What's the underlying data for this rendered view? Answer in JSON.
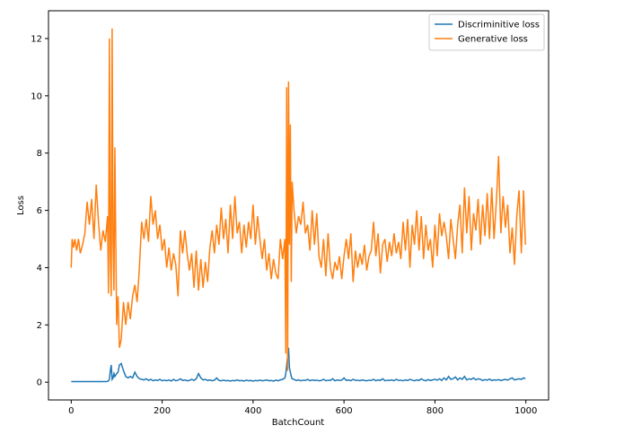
{
  "chart_data": {
    "type": "line",
    "x_label": "BatchCount",
    "y_label": "Loss",
    "xlim": [
      -50,
      1050
    ],
    "ylim": [
      -0.62,
      12.97
    ],
    "xticks": [
      0,
      200,
      400,
      600,
      800,
      1000
    ],
    "yticks": [
      0,
      2,
      4,
      6,
      8,
      10,
      12
    ],
    "legend": "upper right",
    "grid": false,
    "x": [
      0,
      2,
      5,
      8,
      12,
      16,
      20,
      25,
      30,
      35,
      40,
      45,
      50,
      55,
      60,
      65,
      70,
      75,
      80,
      82,
      84,
      86,
      88,
      90,
      92,
      94,
      96,
      98,
      100,
      103,
      106,
      110,
      115,
      120,
      125,
      130,
      135,
      140,
      145,
      150,
      155,
      160,
      165,
      170,
      175,
      180,
      185,
      190,
      195,
      200,
      205,
      210,
      215,
      220,
      225,
      230,
      235,
      240,
      245,
      250,
      255,
      260,
      265,
      270,
      275,
      280,
      285,
      290,
      295,
      300,
      305,
      310,
      315,
      320,
      325,
      330,
      335,
      340,
      345,
      350,
      355,
      360,
      365,
      370,
      375,
      380,
      385,
      390,
      395,
      400,
      405,
      410,
      415,
      420,
      425,
      430,
      435,
      440,
      445,
      450,
      455,
      460,
      465,
      470,
      472,
      474,
      476,
      478,
      480,
      482,
      484,
      486,
      490,
      495,
      500,
      505,
      510,
      515,
      520,
      525,
      530,
      535,
      540,
      545,
      550,
      555,
      560,
      565,
      570,
      575,
      580,
      585,
      590,
      595,
      600,
      605,
      610,
      615,
      620,
      625,
      630,
      635,
      640,
      645,
      650,
      655,
      660,
      665,
      670,
      675,
      680,
      685,
      690,
      695,
      700,
      705,
      710,
      715,
      720,
      725,
      730,
      735,
      740,
      745,
      750,
      755,
      760,
      765,
      770,
      775,
      780,
      785,
      790,
      795,
      800,
      805,
      810,
      815,
      820,
      825,
      830,
      835,
      840,
      845,
      850,
      855,
      860,
      865,
      870,
      875,
      880,
      885,
      890,
      895,
      900,
      905,
      910,
      915,
      920,
      925,
      930,
      935,
      940,
      945,
      950,
      955,
      960,
      965,
      970,
      975,
      980,
      985,
      990,
      995,
      999
    ],
    "series": [
      {
        "name": "Discriminitive loss",
        "color": "#1f77b4",
        "values": [
          0.02,
          0.02,
          0.02,
          0.02,
          0.02,
          0.02,
          0.02,
          0.02,
          0.02,
          0.02,
          0.02,
          0.02,
          0.02,
          0.02,
          0.02,
          0.02,
          0.02,
          0.02,
          0.03,
          0.05,
          0.1,
          0.4,
          0.6,
          0.1,
          0.15,
          0.3,
          0.2,
          0.25,
          0.3,
          0.35,
          0.6,
          0.65,
          0.4,
          0.2,
          0.15,
          0.2,
          0.15,
          0.35,
          0.2,
          0.12,
          0.1,
          0.08,
          0.12,
          0.06,
          0.1,
          0.05,
          0.08,
          0.06,
          0.1,
          0.05,
          0.07,
          0.05,
          0.08,
          0.04,
          0.1,
          0.05,
          0.07,
          0.12,
          0.06,
          0.08,
          0.05,
          0.06,
          0.1,
          0.06,
          0.12,
          0.3,
          0.15,
          0.08,
          0.1,
          0.06,
          0.08,
          0.05,
          0.07,
          0.15,
          0.06,
          0.05,
          0.07,
          0.05,
          0.06,
          0.04,
          0.06,
          0.05,
          0.08,
          0.05,
          0.06,
          0.04,
          0.07,
          0.05,
          0.06,
          0.04,
          0.06,
          0.05,
          0.07,
          0.05,
          0.06,
          0.08,
          0.05,
          0.06,
          0.04,
          0.07,
          0.05,
          0.08,
          0.1,
          0.15,
          0.3,
          0.6,
          0.9,
          1.2,
          0.5,
          0.35,
          0.2,
          0.12,
          0.1,
          0.06,
          0.08,
          0.05,
          0.07,
          0.06,
          0.1,
          0.05,
          0.08,
          0.06,
          0.07,
          0.05,
          0.06,
          0.1,
          0.05,
          0.07,
          0.06,
          0.12,
          0.05,
          0.08,
          0.06,
          0.07,
          0.15,
          0.06,
          0.08,
          0.05,
          0.1,
          0.06,
          0.07,
          0.05,
          0.08,
          0.06,
          0.05,
          0.07,
          0.06,
          0.1,
          0.05,
          0.08,
          0.06,
          0.12,
          0.05,
          0.07,
          0.06,
          0.08,
          0.05,
          0.1,
          0.06,
          0.07,
          0.05,
          0.08,
          0.06,
          0.1,
          0.07,
          0.05,
          0.08,
          0.06,
          0.12,
          0.07,
          0.05,
          0.09,
          0.06,
          0.08,
          0.1,
          0.07,
          0.12,
          0.06,
          0.15,
          0.08,
          0.2,
          0.1,
          0.12,
          0.18,
          0.08,
          0.15,
          0.1,
          0.2,
          0.08,
          0.12,
          0.1,
          0.15,
          0.08,
          0.12,
          0.1,
          0.06,
          0.09,
          0.07,
          0.11,
          0.06,
          0.08,
          0.07,
          0.09,
          0.06,
          0.08,
          0.1,
          0.07,
          0.12,
          0.15,
          0.08,
          0.1,
          0.12,
          0.1,
          0.15,
          0.12
        ]
      },
      {
        "name": "Generative loss",
        "color": "#ff7f0e",
        "values": [
          4.0,
          5.0,
          4.7,
          5.0,
          4.6,
          5.0,
          4.5,
          4.8,
          5.2,
          6.3,
          5.5,
          6.4,
          5.0,
          6.9,
          5.6,
          4.6,
          5.3,
          4.9,
          5.8,
          3.1,
          12.0,
          4.5,
          3.0,
          12.35,
          5.0,
          3.2,
          8.2,
          5.0,
          2.0,
          3.0,
          1.2,
          1.5,
          2.8,
          2.0,
          2.8,
          2.2,
          3.0,
          3.4,
          2.8,
          4.0,
          5.6,
          5.0,
          5.7,
          4.9,
          6.5,
          5.5,
          6.0,
          5.0,
          5.5,
          4.6,
          5.0,
          4.0,
          4.7,
          3.9,
          4.5,
          4.1,
          3.0,
          5.3,
          4.5,
          5.3,
          4.5,
          3.9,
          4.5,
          3.3,
          4.6,
          3.2,
          4.3,
          3.3,
          4.2,
          3.5,
          4.7,
          5.3,
          4.5,
          5.5,
          4.8,
          6.1,
          5.0,
          5.7,
          4.5,
          6.2,
          5.0,
          6.5,
          5.2,
          5.6,
          4.5,
          5.5,
          4.7,
          5.6,
          5.0,
          6.2,
          4.8,
          5.8,
          5.0,
          4.3,
          5.0,
          3.9,
          4.5,
          3.6,
          4.3,
          3.8,
          3.6,
          5.0,
          4.3,
          5.0,
          1.0,
          10.3,
          0.4,
          10.5,
          4.8,
          9.0,
          3.5,
          7.0,
          6.0,
          5.2,
          5.8,
          5.5,
          6.3,
          5.2,
          5.5,
          4.6,
          6.0,
          4.8,
          5.9,
          4.4,
          4.0,
          5.0,
          3.7,
          5.2,
          4.0,
          3.6,
          4.2,
          3.9,
          4.4,
          3.6,
          4.4,
          5.0,
          4.3,
          5.2,
          3.5,
          4.6,
          4.0,
          4.5,
          4.1,
          4.8,
          3.9,
          4.4,
          4.6,
          5.6,
          4.4,
          5.2,
          3.8,
          4.8,
          5.0,
          4.2,
          4.9,
          4.4,
          5.2,
          4.5,
          4.9,
          4.3,
          5.6,
          4.6,
          5.7,
          4.0,
          5.5,
          4.8,
          6.0,
          4.6,
          5.8,
          4.3,
          5.5,
          4.6,
          5.0,
          4.0,
          5.5,
          4.4,
          5.9,
          5.1,
          5.6,
          5.1,
          4.3,
          5.7,
          5.0,
          4.3,
          5.5,
          6.2,
          4.5,
          6.8,
          5.2,
          6.5,
          4.6,
          5.9,
          5.3,
          6.4,
          4.8,
          6.2,
          5.1,
          6.6,
          5.0,
          6.8,
          5.0,
          6.3,
          7.9,
          5.2,
          6.5,
          5.4,
          6.2,
          4.5,
          5.4,
          4.1,
          5.8,
          6.7,
          4.5,
          6.7,
          4.8
        ]
      }
    ]
  }
}
